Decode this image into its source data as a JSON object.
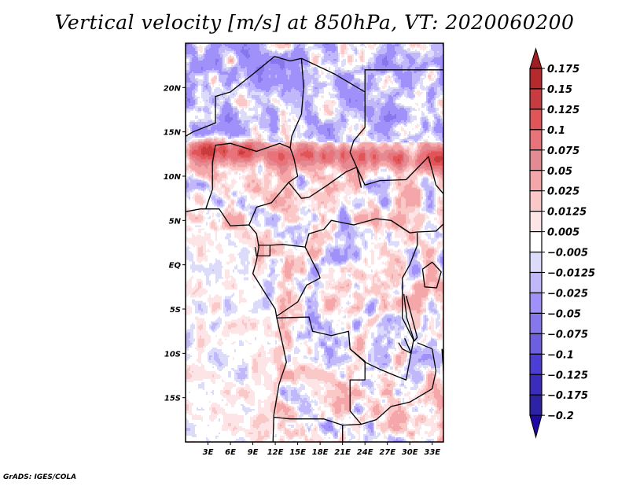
{
  "footer": "GrADS: IGES/COLA",
  "chart_data": {
    "type": "heatmap",
    "title": "Vertical velocity [m/s] at 850hPa, VT: 2020060200",
    "variable": "Vertical velocity",
    "units": "m/s",
    "level": "850hPa",
    "valid_time": "2020060200",
    "xlabel": "",
    "ylabel": "",
    "xlim": [
      0,
      34.5
    ],
    "ylim": [
      -20,
      25
    ],
    "x_ticks": [
      {
        "value": 3,
        "label": "3E"
      },
      {
        "value": 6,
        "label": "6E"
      },
      {
        "value": 9,
        "label": "9E"
      },
      {
        "value": 12,
        "label": "12E"
      },
      {
        "value": 15,
        "label": "15E"
      },
      {
        "value": 18,
        "label": "18E"
      },
      {
        "value": 21,
        "label": "21E"
      },
      {
        "value": 24,
        "label": "24E"
      },
      {
        "value": 27,
        "label": "27E"
      },
      {
        "value": 30,
        "label": "30E"
      },
      {
        "value": 33,
        "label": "33E"
      }
    ],
    "y_ticks": [
      {
        "value": 20,
        "label": "20N"
      },
      {
        "value": 15,
        "label": "15N"
      },
      {
        "value": 10,
        "label": "10N"
      },
      {
        "value": 5,
        "label": "5N"
      },
      {
        "value": 0,
        "label": "EQ"
      },
      {
        "value": -5,
        "label": "5S"
      },
      {
        "value": -10,
        "label": "10S"
      },
      {
        "value": -15,
        "label": "15S"
      }
    ],
    "grid": false,
    "legend": "right",
    "colorbar": {
      "orientation": "vertical",
      "position": "right",
      "extend": "both",
      "levels": [
        0.175,
        0.15,
        0.125,
        0.1,
        0.075,
        0.05,
        0.025,
        0.0125,
        0.005,
        -0.005,
        -0.0125,
        -0.025,
        -0.05,
        -0.075,
        -0.1,
        -0.125,
        -0.175,
        -0.2
      ],
      "labels": [
        "0.175",
        "0.15",
        "0.125",
        "0.1",
        "0.075",
        "0.05",
        "0.025",
        "0.0125",
        "0.005",
        "−0.005",
        "−0.0125",
        "−0.025",
        "−0.05",
        "−0.075",
        "−0.1",
        "−0.125",
        "−0.175",
        "−0.2"
      ],
      "colors": [
        "#a01e22",
        "#b42a2d",
        "#c83c3f",
        "#e05558",
        "#e8737a",
        "#e48a92",
        "#f4a6a8",
        "#fbc8c8",
        "#fde4e6",
        "#ffffff",
        "#dcdcfa",
        "#c0b8fa",
        "#a090fa",
        "#8678ec",
        "#6e5ee0",
        "#4c3ed4",
        "#3c2cbc",
        "#2e22a4",
        "#1e0aa0"
      ]
    },
    "features": [
      "Strong upward motion (positive) band along ~12-13N across Nigeria, Chad and Sudan",
      "Mostly weak negative (blue) values over the Sahara and the southern Atlantic",
      "Near-zero (white) field over central Angola"
    ]
  }
}
